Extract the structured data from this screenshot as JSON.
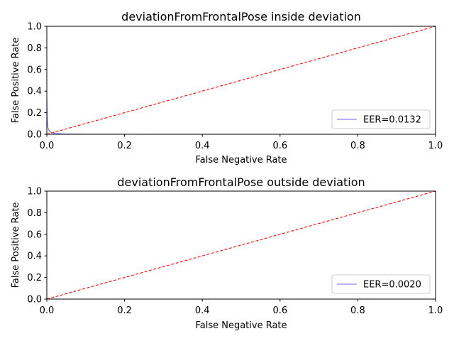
{
  "chart_data": [
    {
      "type": "line",
      "title": "deviationFromFrontalPose inside deviation",
      "xlabel": "False Negative Rate",
      "ylabel": "False Positive Rate",
      "xlim": [
        0.0,
        1.0
      ],
      "ylim": [
        0.0,
        1.0
      ],
      "xticks": [
        "0.0",
        "0.2",
        "0.4",
        "0.6",
        "0.8",
        "1.0"
      ],
      "yticks": [
        "0.0",
        "0.2",
        "0.4",
        "0.6",
        "0.8",
        "1.0"
      ],
      "grid": false,
      "legend_position": "lower right",
      "series": [
        {
          "name": "EER=0.0132",
          "color": "#0000ff",
          "style": "solid",
          "x": [
            0.0,
            0.001,
            0.002,
            0.003,
            0.005,
            0.008,
            0.012,
            0.02,
            0.04,
            0.1,
            0.3,
            0.6,
            1.0
          ],
          "y": [
            0.35,
            0.16,
            0.09,
            0.06,
            0.04,
            0.025,
            0.015,
            0.008,
            0.003,
            0.001,
            0.0,
            0.0,
            0.0
          ]
        },
        {
          "name": "",
          "color": "#ff0000",
          "style": "dashed",
          "x": [
            0.0,
            1.0
          ],
          "y": [
            0.0,
            1.0
          ]
        }
      ]
    },
    {
      "type": "line",
      "title": "deviationFromFrontalPose outside deviation",
      "xlabel": "False Negative Rate",
      "ylabel": "False Positive Rate",
      "xlim": [
        0.0,
        1.0
      ],
      "ylim": [
        0.0,
        1.0
      ],
      "xticks": [
        "0.0",
        "0.2",
        "0.4",
        "0.6",
        "0.8",
        "1.0"
      ],
      "yticks": [
        "0.0",
        "0.2",
        "0.4",
        "0.6",
        "0.8",
        "1.0"
      ],
      "grid": false,
      "legend_position": "lower right",
      "series": [
        {
          "name": "EER=0.0020",
          "color": "#0000ff",
          "style": "solid",
          "x": [
            0.0,
            0.002,
            0.01,
            0.1,
            0.5,
            1.0
          ],
          "y": [
            0.003,
            0.002,
            0.001,
            0.0,
            0.0,
            0.0
          ]
        },
        {
          "name": "",
          "color": "#ff0000",
          "style": "dashed",
          "x": [
            0.0,
            1.0
          ],
          "y": [
            0.0,
            1.0
          ]
        }
      ]
    }
  ]
}
